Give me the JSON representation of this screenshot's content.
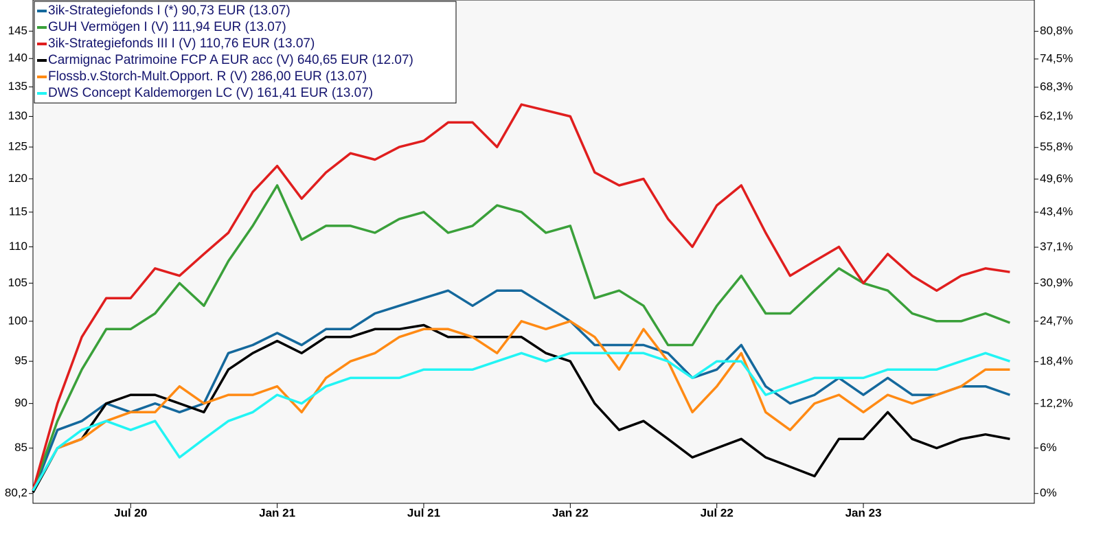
{
  "chart_data": {
    "type": "line",
    "x": [
      "2020-03",
      "2020-04",
      "2020-05",
      "2020-06",
      "2020-07",
      "2020-08",
      "2020-09",
      "2020-10",
      "2020-11",
      "2020-12",
      "2021-01",
      "2021-02",
      "2021-03",
      "2021-04",
      "2021-05",
      "2021-06",
      "2021-07",
      "2021-08",
      "2021-09",
      "2021-10",
      "2021-11",
      "2021-12",
      "2022-01",
      "2022-02",
      "2022-03",
      "2022-04",
      "2022-05",
      "2022-06",
      "2022-07",
      "2022-08",
      "2022-09",
      "2022-10",
      "2022-11",
      "2022-12",
      "2023-01",
      "2023-02",
      "2023-03",
      "2023-04",
      "2023-05",
      "2023-06",
      "2023-07"
    ],
    "xlim": [
      "2020-03",
      "2023-08"
    ],
    "xticks": [
      {
        "value": "2020-07",
        "label": "Jul 20"
      },
      {
        "value": "2021-01",
        "label": "Jan 21"
      },
      {
        "value": "2021-07",
        "label": "Jul 21"
      },
      {
        "value": "2022-01",
        "label": "Jan 22"
      },
      {
        "value": "2022-07",
        "label": "Jul 22"
      },
      {
        "value": "2023-01",
        "label": "Jan 23"
      }
    ],
    "ylog": true,
    "ylim": [
      79.2,
      150.9
    ],
    "yticks": [
      {
        "value": 80.2,
        "label": "80,2"
      },
      85,
      90,
      95,
      100,
      105,
      110,
      115,
      120,
      125,
      130,
      135,
      140,
      145
    ],
    "y2scale": "log-growth",
    "y2lim": [
      -1.25,
      88.2
    ],
    "y2ticks": [
      {
        "value": 0,
        "label": "0%"
      },
      {
        "value": 6,
        "label": "6%"
      },
      {
        "value": 12.2,
        "label": "12,2%"
      },
      {
        "value": 18.4,
        "label": "18,4%"
      },
      {
        "value": 24.7,
        "label": "24,7%"
      },
      {
        "value": 30.9,
        "label": "30,9%"
      },
      {
        "value": 37.1,
        "label": "37,1%"
      },
      {
        "value": 43.4,
        "label": "43,4%"
      },
      {
        "value": 49.6,
        "label": "49,6%"
      },
      {
        "value": 55.8,
        "label": "55,8%"
      },
      {
        "value": 62.1,
        "label": "62,1%"
      },
      {
        "value": 68.3,
        "label": "68,3%"
      },
      {
        "value": 74.5,
        "label": "74,5%"
      },
      {
        "value": 80.8,
        "label": "80,8%"
      }
    ],
    "grid": false,
    "legend": "top-left",
    "series": [
      {
        "name": "3ik-Strategiefonds I (*) 90,73 EUR (13.07)",
        "color": "#14689c",
        "values": [
          80.3,
          87,
          88,
          90,
          89,
          90,
          89,
          90,
          96,
          97,
          98.5,
          97,
          99,
          99,
          101,
          102,
          103,
          104,
          102,
          104,
          104,
          102,
          100,
          97,
          97,
          97,
          96,
          93,
          94,
          97,
          92,
          90,
          91,
          93,
          91,
          93,
          91,
          91,
          92,
          92,
          91
        ]
      },
      {
        "name": "GUH Vermögen I (V) 111,94 EUR (13.07)",
        "color": "#3aa03a",
        "values": [
          80.5,
          88,
          94,
          99,
          99,
          101,
          105,
          102,
          108,
          113,
          119,
          111,
          113,
          113,
          112,
          114,
          115,
          112,
          113,
          116,
          115,
          112,
          113,
          103,
          104,
          102,
          97,
          97,
          102,
          106,
          101,
          101,
          104,
          107,
          105,
          104,
          101,
          100,
          100,
          101,
          99.8
        ]
      },
      {
        "name": "3ik-Strategiefonds III I (V) 110,76 EUR (13.07)",
        "color": "#e01e1e",
        "values": [
          80.5,
          90,
          98,
          103,
          103,
          107,
          106,
          109,
          112,
          118,
          122,
          117,
          121,
          124,
          123,
          125,
          126,
          129,
          129,
          125,
          132,
          131,
          130,
          121,
          119,
          120,
          114,
          110,
          116,
          119,
          112,
          106,
          108,
          110,
          105,
          109,
          106,
          104,
          106,
          107,
          106.5
        ]
      },
      {
        "name": "Carmignac Patrimoine FCP A EUR acc (V) 640,65 EUR (12.07)",
        "color": "#000000",
        "values": [
          80.3,
          85,
          86,
          90,
          91,
          91,
          90,
          89,
          94,
          96,
          97.5,
          96,
          98,
          98,
          99,
          99,
          99.5,
          98,
          98,
          98,
          98,
          96,
          95,
          90,
          87,
          88,
          86,
          84,
          85,
          86,
          84,
          83,
          82,
          86,
          86,
          89,
          86,
          85,
          86,
          86.5,
          86
        ]
      },
      {
        "name": "Flossb.v.Storch-Mult.Opport. R (V) 286,00 EUR (13.07)",
        "color": "#ff8a14",
        "values": [
          80.5,
          85,
          86,
          88,
          89,
          89,
          92,
          90,
          91,
          91,
          92,
          89,
          93,
          95,
          96,
          98,
          99,
          99,
          98,
          96,
          100,
          99,
          100,
          98,
          94,
          99,
          95,
          89,
          92,
          96,
          89,
          87,
          90,
          91,
          89,
          91,
          90,
          91,
          92,
          94,
          94
        ]
      },
      {
        "name": "DWS Concept Kaldemorgen LC (V) 161,41 EUR (13.07)",
        "color": "#22f4f4",
        "values": [
          80.5,
          85,
          87,
          88,
          87,
          88,
          84,
          86,
          88,
          89,
          91,
          90,
          92,
          93,
          93,
          93,
          94,
          94,
          94,
          95,
          96,
          95,
          96,
          96,
          96,
          96,
          95,
          93,
          95,
          95,
          91,
          92,
          93,
          93,
          93,
          94,
          94,
          94,
          95,
          96,
          95
        ]
      }
    ]
  }
}
